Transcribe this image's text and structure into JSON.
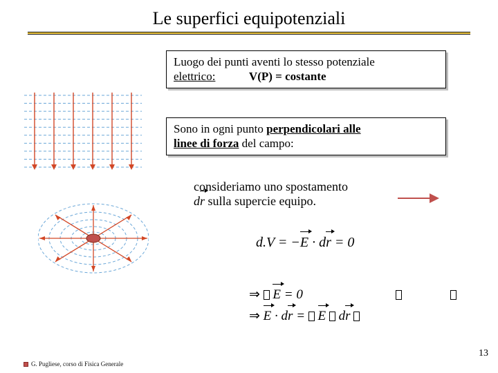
{
  "title": "Le superfici equipotenziali",
  "box1": {
    "line1": "Luogo dei punti aventi lo stesso potenziale",
    "line2a": "elettrico:",
    "line2b": "V(P) = costante"
  },
  "box2": {
    "line1a": "Sono in ogni punto ",
    "line1b": "perpendicolari alle",
    "line2a": "linee di forza",
    "line2b": " del campo:"
  },
  "math": {
    "consider1": "consideriamo uno spostamento",
    "consider2a": "d",
    "consider2b": "r",
    "consider2c": " sulla supercie equipo.",
    "dv1": "d.V = −",
    "dv_E": "E",
    "dv_dot": " · d",
    "dv_r": "r",
    "dv_eq0": " = 0",
    "impl1a": "⇒ ",
    "impl1b": "E",
    "impl1c": " = 0",
    "impl2a": "E",
    "impl2b": " · d",
    "impl2c": "r",
    "impl2d": " = ",
    "impl2e": "E",
    "impl2f": "d",
    "impl2g": "r"
  },
  "diagrams": {
    "parallel": {
      "field_line_color": "#d24726",
      "equipotential_color": "#6aa7d8",
      "equipotential_dash": "4,3",
      "n_field_lines": 6,
      "n_equipotentials": 10,
      "width": 180,
      "height": 120
    },
    "radial": {
      "field_line_color": "#d24726",
      "equipotential_color": "#6aa7d8",
      "equipotential_dash": "4,3",
      "n_rays": 8,
      "ellipses": [
        {
          "rx": 18,
          "ry": 9
        },
        {
          "rx": 32,
          "ry": 17
        },
        {
          "rx": 48,
          "ry": 27
        },
        {
          "rx": 64,
          "ry": 38
        },
        {
          "rx": 80,
          "ry": 50
        }
      ],
      "center_color": "#c0504d",
      "width": 160,
      "height": 130
    }
  },
  "colors": {
    "title_rule": "#ffd54a",
    "arrow": "#c0504d",
    "box_border": "#000000",
    "box_shadow": "#bfbfbf"
  },
  "footer": "G. Pugliese, corso di Fisica Generale",
  "page": "13"
}
